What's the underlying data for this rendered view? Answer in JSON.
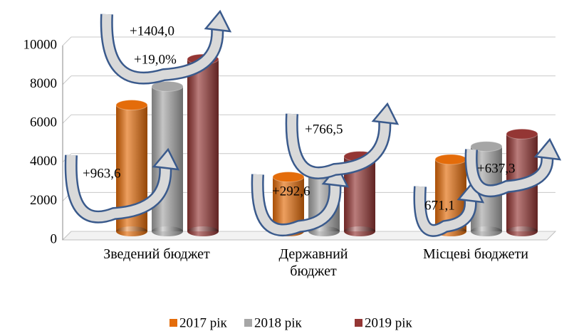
{
  "chart_data": {
    "type": "bar",
    "categories": [
      "Зведений бюджет",
      "Державний\nбюджет",
      "Місцеві бюджети"
    ],
    "series": [
      {
        "name": "2017 рік",
        "color": "#e46c0a",
        "values": [
          6500,
          2800,
          3700
        ]
      },
      {
        "name": "2018 рік",
        "color": "#a6a6a6",
        "values": [
          7460,
          3090,
          4370
        ]
      },
      {
        "name": "2019 рік",
        "color": "#943634",
        "values": [
          8860,
          3860,
          5010
        ]
      }
    ],
    "ylim": [
      0,
      10000
    ],
    "yticks": [
      0,
      2000,
      4000,
      6000,
      8000,
      10000
    ],
    "grid": true,
    "legend": "bottom",
    "annotations": [
      {
        "text": "+963,6"
      },
      {
        "text": "+1404,0"
      },
      {
        "text": "+19,0%"
      },
      {
        "text": "+292,6"
      },
      {
        "text": "+766,5"
      },
      {
        "text": "671,1"
      },
      {
        "text": "+637,3"
      }
    ]
  }
}
